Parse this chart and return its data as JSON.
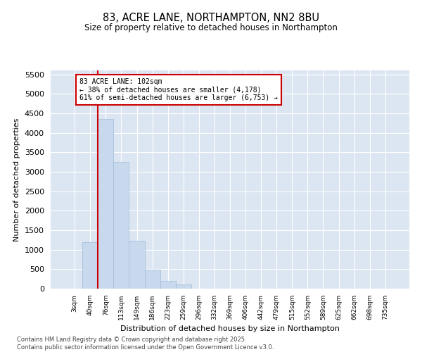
{
  "title_line1": "83, ACRE LANE, NORTHAMPTON, NN2 8BU",
  "title_line2": "Size of property relative to detached houses in Northampton",
  "xlabel": "Distribution of detached houses by size in Northampton",
  "ylabel": "Number of detached properties",
  "bar_color": "#c8d9ee",
  "bar_edgecolor": "#a0bcd8",
  "vline_color": "#cc0000",
  "vline_x_index": 2,
  "annotation_text": "83 ACRE LANE: 102sqm\n← 38% of detached houses are smaller (4,178)\n61% of semi-detached houses are larger (6,753) →",
  "annotation_box_edgecolor": "#cc0000",
  "plot_bg_color": "#dce6f2",
  "fig_bg_color": "#ffffff",
  "categories": [
    "3sqm",
    "40sqm",
    "76sqm",
    "113sqm",
    "149sqm",
    "186sqm",
    "223sqm",
    "259sqm",
    "296sqm",
    "332sqm",
    "369sqm",
    "406sqm",
    "442sqm",
    "479sqm",
    "515sqm",
    "552sqm",
    "589sqm",
    "625sqm",
    "662sqm",
    "698sqm",
    "735sqm"
  ],
  "values": [
    0,
    1200,
    4350,
    3250,
    1230,
    480,
    190,
    100,
    0,
    0,
    0,
    0,
    0,
    0,
    0,
    0,
    0,
    0,
    0,
    0,
    0
  ],
  "ylim": [
    0,
    5600
  ],
  "yticks": [
    0,
    500,
    1000,
    1500,
    2000,
    2500,
    3000,
    3500,
    4000,
    4500,
    5000,
    5500
  ],
  "footer": "Contains HM Land Registry data © Crown copyright and database right 2025.\nContains public sector information licensed under the Open Government Licence v3.0.",
  "figsize": [
    6.0,
    5.0
  ],
  "dpi": 100
}
